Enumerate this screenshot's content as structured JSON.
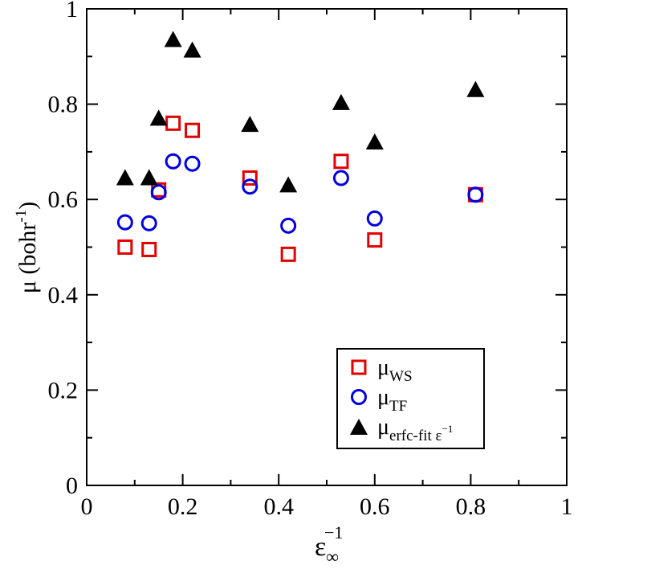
{
  "chart_data": {
    "type": "scatter",
    "xlabel": {
      "base": "ε",
      "sub": "∞",
      "sup": "−1"
    },
    "ylabel": {
      "main": "μ  (bohr",
      "sup": "-1",
      "close": ")"
    },
    "xlim": [
      0,
      1
    ],
    "ylim": [
      0,
      1
    ],
    "xticks": [
      0,
      0.2,
      0.4,
      0.6,
      0.8,
      1
    ],
    "yticks": [
      0,
      0.2,
      0.4,
      0.6,
      0.8,
      1
    ],
    "xtick_labels": [
      "0",
      "0.2",
      "0.4",
      "0.6",
      "0.8",
      "1"
    ],
    "ytick_labels": [
      "0",
      "0.2",
      "0.4",
      "0.6",
      "0.8",
      "1"
    ],
    "grid": false,
    "legend_position": "bottom-right",
    "series": [
      {
        "name": "μWS",
        "label": {
          "base": "μ",
          "sub": "WS"
        },
        "marker": "open-square",
        "color": "#e00000",
        "points": [
          [
            0.08,
            0.5
          ],
          [
            0.13,
            0.495
          ],
          [
            0.15,
            0.62
          ],
          [
            0.18,
            0.76
          ],
          [
            0.22,
            0.745
          ],
          [
            0.34,
            0.645
          ],
          [
            0.42,
            0.485
          ],
          [
            0.53,
            0.68
          ],
          [
            0.6,
            0.515
          ],
          [
            0.81,
            0.61
          ]
        ]
      },
      {
        "name": "μTF",
        "label": {
          "base": "μ",
          "sub": "TF"
        },
        "marker": "open-circle",
        "color": "#0000e0",
        "points": [
          [
            0.08,
            0.552
          ],
          [
            0.13,
            0.55
          ],
          [
            0.15,
            0.615
          ],
          [
            0.18,
            0.68
          ],
          [
            0.22,
            0.675
          ],
          [
            0.34,
            0.627
          ],
          [
            0.42,
            0.545
          ],
          [
            0.53,
            0.645
          ],
          [
            0.6,
            0.56
          ],
          [
            0.81,
            0.61
          ]
        ]
      },
      {
        "name": "μerfc-fit ε−1",
        "label": {
          "base": "μ",
          "sub": "erfc-fit ε",
          "subsup": "−1"
        },
        "marker": "filled-triangle",
        "color": "#000000",
        "points": [
          [
            0.08,
            0.645
          ],
          [
            0.13,
            0.645
          ],
          [
            0.15,
            0.77
          ],
          [
            0.18,
            0.935
          ],
          [
            0.22,
            0.913
          ],
          [
            0.34,
            0.757
          ],
          [
            0.42,
            0.63
          ],
          [
            0.53,
            0.803
          ],
          [
            0.6,
            0.72
          ],
          [
            0.81,
            0.83
          ]
        ]
      }
    ]
  }
}
